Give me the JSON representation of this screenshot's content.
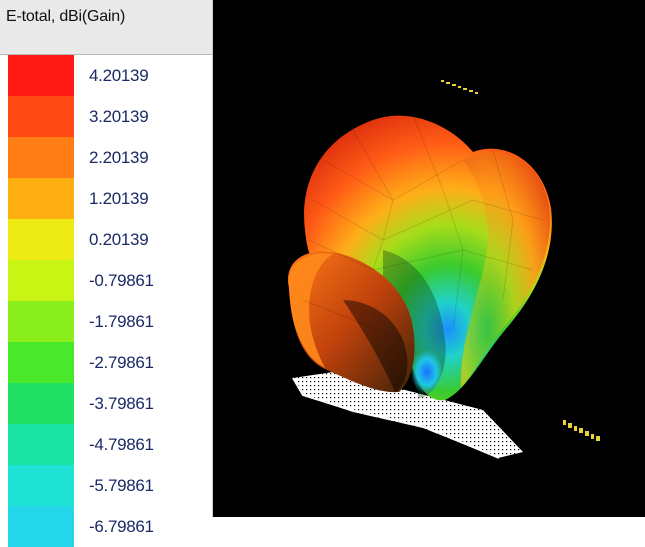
{
  "legend": {
    "title": "E-total, dBi(Gain)",
    "entries": [
      {
        "value": "4.20139",
        "color": "#ff1a14"
      },
      {
        "value": "3.20139",
        "color": "#ff4a14"
      },
      {
        "value": "2.20139",
        "color": "#ff7d14"
      },
      {
        "value": "1.20139",
        "color": "#ffae12"
      },
      {
        "value": "0.20139",
        "color": "#ecec14"
      },
      {
        "value": "-0.79861",
        "color": "#c8f514"
      },
      {
        "value": "-1.79861",
        "color": "#8aef1c"
      },
      {
        "value": "-2.79861",
        "color": "#4ae82a"
      },
      {
        "value": "-3.79861",
        "color": "#22e064"
      },
      {
        "value": "-4.79861",
        "color": "#1ae4a4"
      },
      {
        "value": "-5.79861",
        "color": "#1ee2d4"
      },
      {
        "value": "-6.79861",
        "color": "#24d6ea"
      }
    ]
  }
}
